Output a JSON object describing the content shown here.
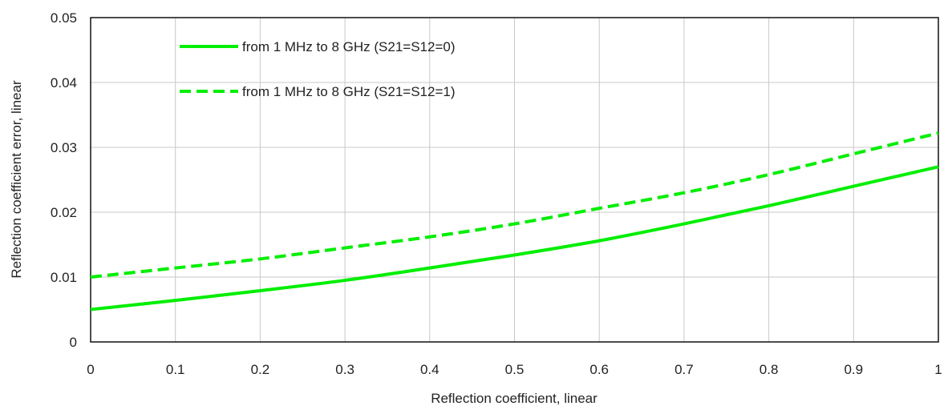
{
  "chart_data": {
    "type": "line",
    "title": "",
    "xlabel": "Reflection coefficient, linear",
    "ylabel": "Reflection coefficient error, linear",
    "xlim": [
      0,
      1
    ],
    "ylim": [
      0,
      0.05
    ],
    "xticks": [
      0,
      0.1,
      0.2,
      0.3,
      0.4,
      0.5,
      0.6,
      0.7,
      0.8,
      0.9,
      1
    ],
    "xtick_labels": [
      "0",
      "0.1",
      "0.2",
      "0.3",
      "0.4",
      "0.5",
      "0.6",
      "0.7",
      "0.8",
      "0.9",
      "1"
    ],
    "yticks": [
      0,
      0.01,
      0.02,
      0.03,
      0.04,
      0.05
    ],
    "ytick_labels": [
      "0",
      "0.01",
      "0.02",
      "0.03",
      "0.04",
      "0.05"
    ],
    "grid": true,
    "legend_position": "top-left",
    "x": [
      0,
      0.1,
      0.2,
      0.3,
      0.4,
      0.5,
      0.6,
      0.7,
      0.8,
      0.9,
      1
    ],
    "series": [
      {
        "name": "from 1 MHz to 8 GHz (S21=S12=0)",
        "style": "solid",
        "color": "#00ee00",
        "values": [
          0.005,
          0.0064,
          0.0079,
          0.0095,
          0.0114,
          0.0134,
          0.0156,
          0.0182,
          0.021,
          0.024,
          0.027
        ]
      },
      {
        "name": "from 1 MHz to 8 GHz (S21=S12=1)",
        "style": "dashed",
        "color": "#00ee00",
        "values": [
          0.01,
          0.0114,
          0.0128,
          0.0145,
          0.0162,
          0.0182,
          0.0206,
          0.023,
          0.0258,
          0.029,
          0.0322
        ]
      }
    ]
  }
}
